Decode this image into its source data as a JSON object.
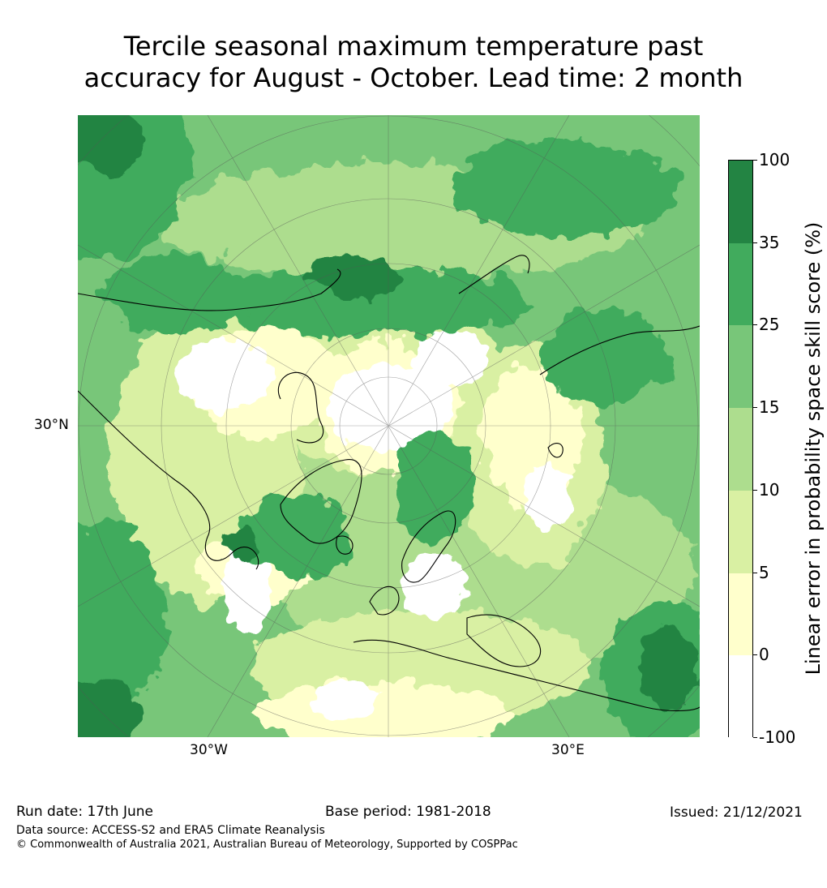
{
  "title_line1": "Tercile seasonal maximum temperature past",
  "title_line2": "accuracy for August - October. Lead time: 2 month",
  "map": {
    "lat_label": "30°N",
    "lon_labels": [
      "30°W",
      "30°E"
    ]
  },
  "colorbar": {
    "label": "Linear error in probability space skill score (%)",
    "ticks": [
      "100",
      "35",
      "25",
      "15",
      "10",
      "5",
      "0",
      "-100"
    ],
    "colors": [
      "#238443",
      "#41ab5d",
      "#78c679",
      "#addd8e",
      "#d9f0a3",
      "#ffffcc",
      "#ffffff"
    ],
    "legend_ranges": [
      {
        "range": "35–100",
        "color": "#238443"
      },
      {
        "range": "25–35",
        "color": "#41ab5d"
      },
      {
        "range": "15–25",
        "color": "#78c679"
      },
      {
        "range": "10–15",
        "color": "#addd8e"
      },
      {
        "range": "5–10",
        "color": "#d9f0a3"
      },
      {
        "range": "0–5",
        "color": "#ffffcc"
      },
      {
        "range": "-100–0",
        "color": "#ffffff"
      }
    ]
  },
  "footer": {
    "run_date": "Run date: 17th June",
    "base_period": "Base period: 1981-2018",
    "issued": "Issued: 21/12/2021",
    "data_source": "Data source: ACCESS-S2 and ERA5 Climate Reanalysis",
    "copyright": "© Commonwealth of Australia 2021, Australian Bureau of Meteorology, Supported by COSPPac"
  }
}
